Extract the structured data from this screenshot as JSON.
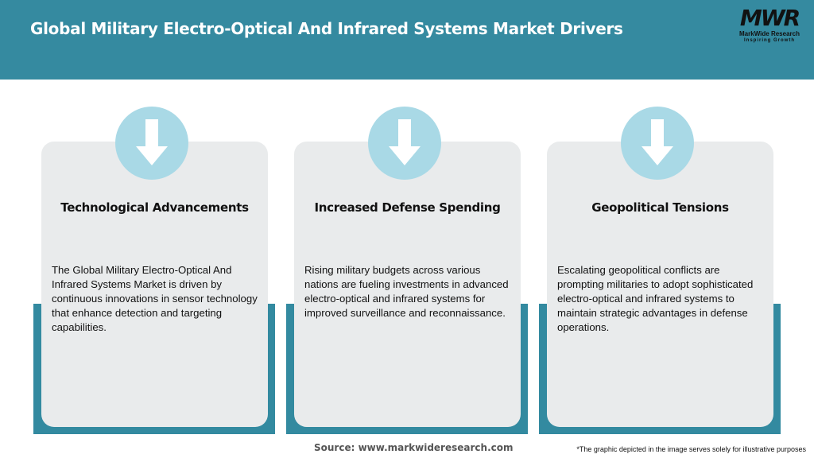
{
  "header": {
    "title": "Global Military Electro-Optical And Infrared Systems Market Drivers"
  },
  "logo": {
    "mark": "MWR",
    "name": "MarkWide Research",
    "tagline": "Inspiring Growth"
  },
  "colors": {
    "header": "#358aa0",
    "panel": "#338aa0",
    "card": "#e9ebec",
    "circle": "#a9d9e6"
  },
  "cards": [
    {
      "icon": "arrow-down-icon",
      "title": "Technological Advancements",
      "body": "The Global Military Electro-Optical And Infrared Systems Market is driven by continuous innovations in sensor technology that enhance detection and targeting capabilities."
    },
    {
      "icon": "arrow-down-icon",
      "title": "Increased Defense Spending",
      "body": "Rising military budgets across various nations are fueling investments in advanced electro-optical and infrared systems for improved surveillance and reconnaissance."
    },
    {
      "icon": "arrow-down-icon",
      "title": "Geopolitical Tensions",
      "body": "Escalating geopolitical conflicts are prompting militaries to adopt sophisticated electro-optical and infrared systems to maintain strategic advantages in defense operations."
    }
  ],
  "footer": {
    "source": "Source: www.markwideresearch.com",
    "note": "*The graphic depicted in the image serves solely for illustrative purposes"
  }
}
